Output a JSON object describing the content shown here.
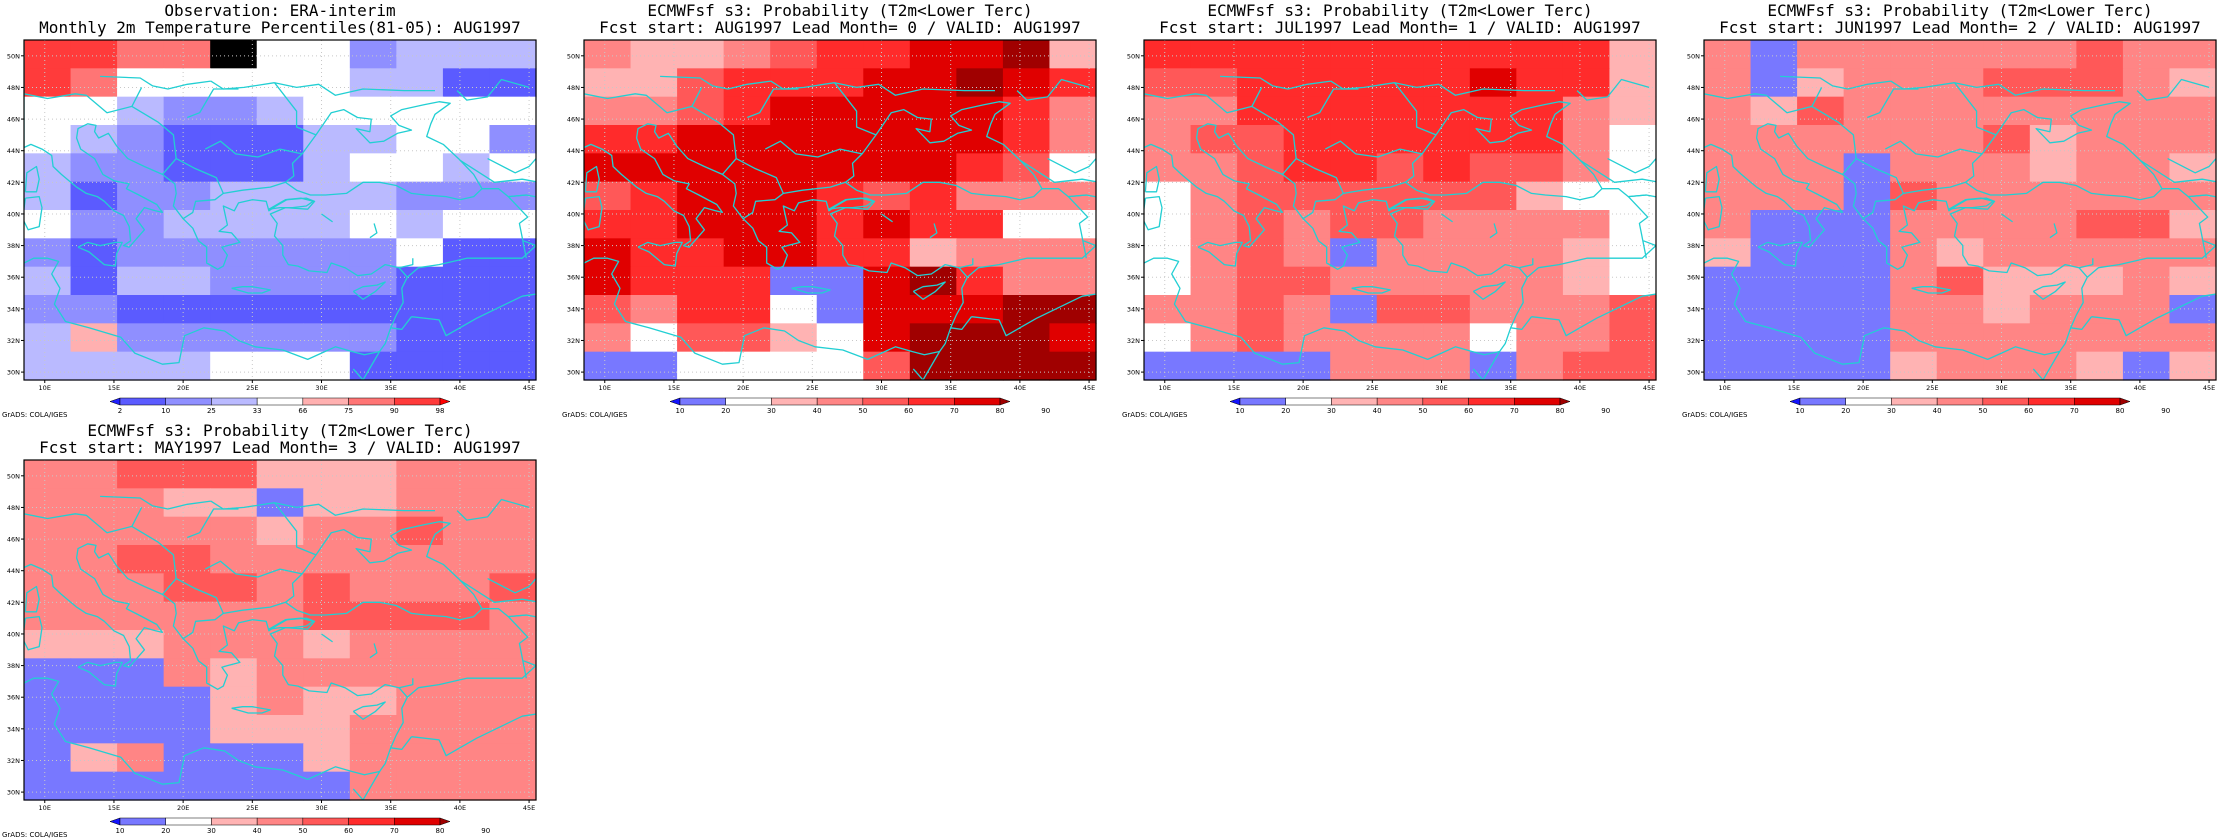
{
  "colors": {
    "obs": [
      "#2020ff",
      "#5b5bff",
      "#8f8fff",
      "#babaff",
      "#ffffff",
      "#ffb0b0",
      "#ff7575",
      "#ff3b3b",
      "#ff0000"
    ],
    "prob": [
      "#1414ff",
      "#7878ff",
      "#ffffff",
      "#ffb3b3",
      "#ff8585",
      "#ff5858",
      "#ff2b2b",
      "#e00000",
      "#a00000"
    ],
    "coast": "#22cfd3",
    "grid": "#c8c8c8"
  },
  "panels": [
    {
      "id": "obs",
      "title1": "Observation: ERA-interim",
      "title2": "Monthly 2m Temperature Percentiles(81-05): AUG1997",
      "colorbar_labels": [
        "2",
        "10",
        "25",
        "33",
        "66",
        "75",
        "90",
        "98"
      ],
      "palette": "obs",
      "grid_rows": [
        "77669442333",
        "76444443311",
        "44322344444",
        "43211133442",
        "32211134434",
        "31223333222",
        "42233334344",
        "21222222411",
        "31332222111",
        "22111111111",
        "35222222111",
        "33334441111"
      ]
    },
    {
      "id": "lead0",
      "title1": "ECMWFsf s3: Probability (T2m<Lower Terc)",
      "title2": "Fcst start: AUG1997  Lead Month= 0 / VALID: AUG1997",
      "colorbar_labels": [
        "10",
        "20",
        "30",
        "40",
        "50",
        "60",
        "70",
        "80",
        "90"
      ],
      "palette": "prob",
      "grid_rows": [
        "43345667783",
        "33566677876",
        "44567777764",
        "66777777764",
        "77777777652",
        "56777656444",
        "66777676622",
        "76677663444",
        "76661178644",
        "54662177788",
        "42553278887",
        "11222258888"
      ]
    },
    {
      "id": "lead1",
      "title1": "ECMWFsf s3: Probability (T2m<Lower Terc)",
      "title2": "Fcst start: JUL1997  Lead Month= 1 / VALID: AUG1997",
      "colorbar_labels": [
        "10",
        "20",
        "30",
        "40",
        "50",
        "60",
        "70",
        "80",
        "90"
      ],
      "palette": "prob",
      "grid_rows": [
        "66666666663",
        "55666667663",
        "44666666643",
        "45566666642",
        "44566565542",
        "24555555322",
        "24545544442",
        "24541444432",
        "24554444432",
        "44541554445",
        "24544442445",
        "11114441455"
      ]
    },
    {
      "id": "lead2",
      "title1": "ECMWFsf s3: Probability (T2m<Lower Terc)",
      "title2": "Fcst start: JUN1997  Lead Month= 2 / VALID: AUG1997",
      "colorbar_labels": [
        "10",
        "20",
        "30",
        "40",
        "50",
        "60",
        "70",
        "80",
        "90"
      ],
      "palette": "prob",
      "grid_rows": [
        "41444444544",
        "41344455543",
        "43544444444",
        "44444453444",
        "44414443443",
        "44415444444",
        "41114444553",
        "31114344444",
        "11114533343",
        "11114434441",
        "11114444444",
        "11113444313"
      ]
    },
    {
      "id": "lead3",
      "title1": "ECMWFsf s3: Probability (T2m<Lower Terc)",
      "title2": "Fcst start: MAY1997  Lead Month= 3 / VALID: AUG1997",
      "colorbar_labels": [
        "10",
        "20",
        "30",
        "40",
        "50",
        "60",
        "70",
        "80",
        "90"
      ],
      "palette": "prob",
      "grid_rows": [
        "44555333444",
        "44433133444",
        "44444344544",
        "44554444444",
        "44455454445",
        "44444455554",
        "33344434444",
        "11143444444",
        "11113433444",
        "11113334444",
        "13411134444",
        "11111114444"
      ]
    }
  ],
  "footer": "GrADS: COLA/IGES",
  "lat_labels": [
    "50N",
    "48N",
    "46N",
    "44N",
    "42N",
    "40N",
    "38N",
    "36N",
    "34N",
    "32N",
    "30N"
  ],
  "lon_labels": [
    "10E",
    "15E",
    "20E",
    "25E",
    "30E",
    "35E",
    "40E",
    "45E"
  ]
}
